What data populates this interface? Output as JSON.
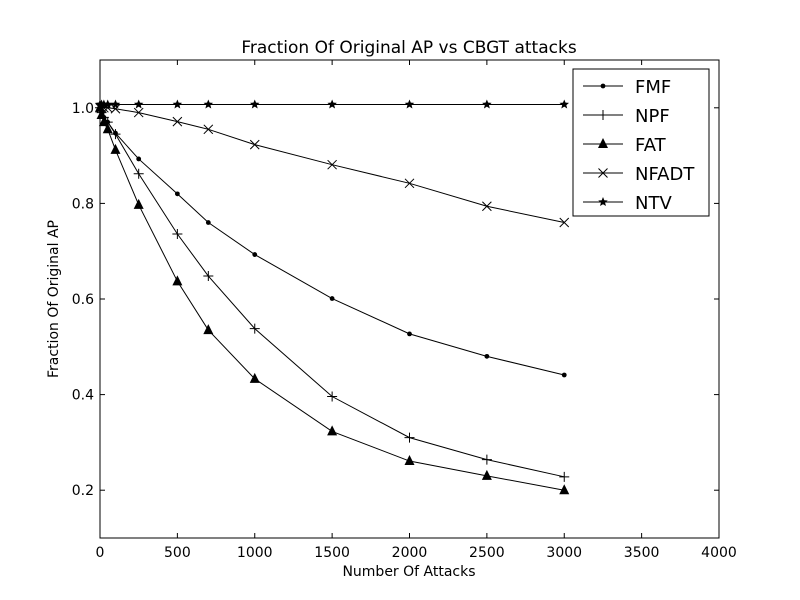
{
  "chart_data": {
    "type": "line",
    "title": "Fraction Of Original AP vs CBGT attacks",
    "xlabel": "Number Of Attacks",
    "ylabel": "Fraction Of Original AP",
    "xlim": [
      0,
      4000
    ],
    "ylim": [
      0.1,
      1.1
    ],
    "xticks": [
      0,
      500,
      1000,
      1500,
      2000,
      2500,
      3000,
      3500,
      4000
    ],
    "xtick_labels": [
      "0",
      "500",
      "1000",
      "1500",
      "2000",
      "2500",
      "3000",
      "3500",
      "4000"
    ],
    "yticks": [
      0.2,
      0.4,
      0.6,
      0.8,
      1.0
    ],
    "ytick_labels": [
      "0.2",
      "0.4",
      "0.6",
      "0.8",
      "1.0"
    ],
    "grid": false,
    "legend_position": "top-right",
    "x": [
      0,
      10,
      25,
      50,
      100,
      250,
      500,
      700,
      1000,
      1500,
      2000,
      2500,
      3000
    ],
    "series": [
      {
        "name": "FMF",
        "marker": "dot",
        "values": [
          1.0,
          0.99,
          0.98,
          0.97,
          0.947,
          0.893,
          0.82,
          0.76,
          0.693,
          0.601,
          0.527,
          0.48,
          0.441
        ]
      },
      {
        "name": "NPF",
        "marker": "plus",
        "values": [
          1.0,
          0.99,
          0.98,
          0.97,
          0.945,
          0.862,
          0.736,
          0.648,
          0.538,
          0.396,
          0.31,
          0.264,
          0.228
        ]
      },
      {
        "name": "FAT",
        "marker": "triangle",
        "values": [
          1.0,
          0.985,
          0.97,
          0.955,
          0.912,
          0.797,
          0.637,
          0.535,
          0.433,
          0.323,
          0.261,
          0.23,
          0.2
        ]
      },
      {
        "name": "NFADT",
        "marker": "x",
        "values": [
          1.0,
          1.0,
          1.0,
          1.0,
          0.998,
          0.99,
          0.971,
          0.955,
          0.923,
          0.881,
          0.842,
          0.794,
          0.76
        ]
      },
      {
        "name": "NTV",
        "marker": "star",
        "values": [
          1.007,
          1.007,
          1.007,
          1.007,
          1.007,
          1.007,
          1.007,
          1.007,
          1.007,
          1.007,
          1.007,
          1.007,
          1.007
        ]
      }
    ]
  }
}
